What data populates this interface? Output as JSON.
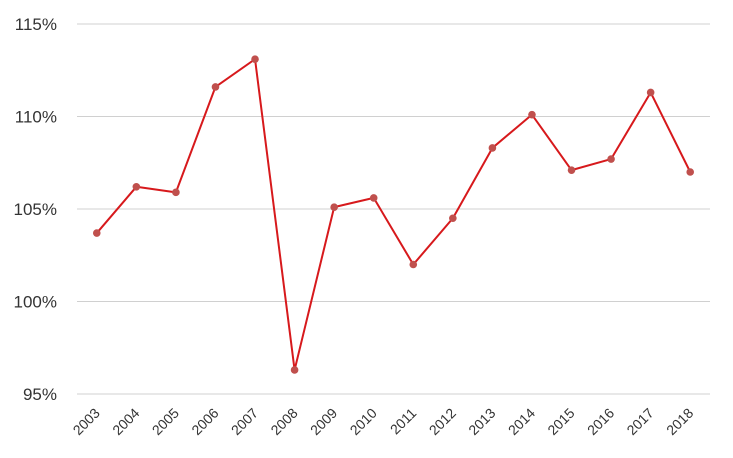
{
  "chart_data": {
    "type": "line",
    "categories": [
      "2003",
      "2004",
      "2005",
      "2006",
      "2007",
      "2008",
      "2009",
      "2010",
      "2011",
      "2012",
      "2013",
      "2014",
      "2015",
      "2016",
      "2017",
      "2018"
    ],
    "series": [
      {
        "values": [
          103.7,
          106.2,
          105.9,
          111.6,
          113.1,
          96.3,
          105.1,
          105.6,
          102.0,
          104.5,
          108.3,
          110.1,
          107.1,
          107.7,
          111.3,
          107.0
        ]
      }
    ],
    "ylim": [
      95,
      115
    ],
    "y_ticks": [
      {
        "value": 115,
        "label": "115%"
      },
      {
        "value": 110,
        "label": "110%"
      },
      {
        "value": 105,
        "label": "105%"
      },
      {
        "value": 100,
        "label": "100%"
      },
      {
        "value": 95,
        "label": "95%"
      }
    ],
    "grid": true,
    "legend": false,
    "colors": {
      "line": "#d7191c",
      "marker": "#c0504d"
    },
    "title": "",
    "xlabel": "",
    "ylabel": ""
  }
}
